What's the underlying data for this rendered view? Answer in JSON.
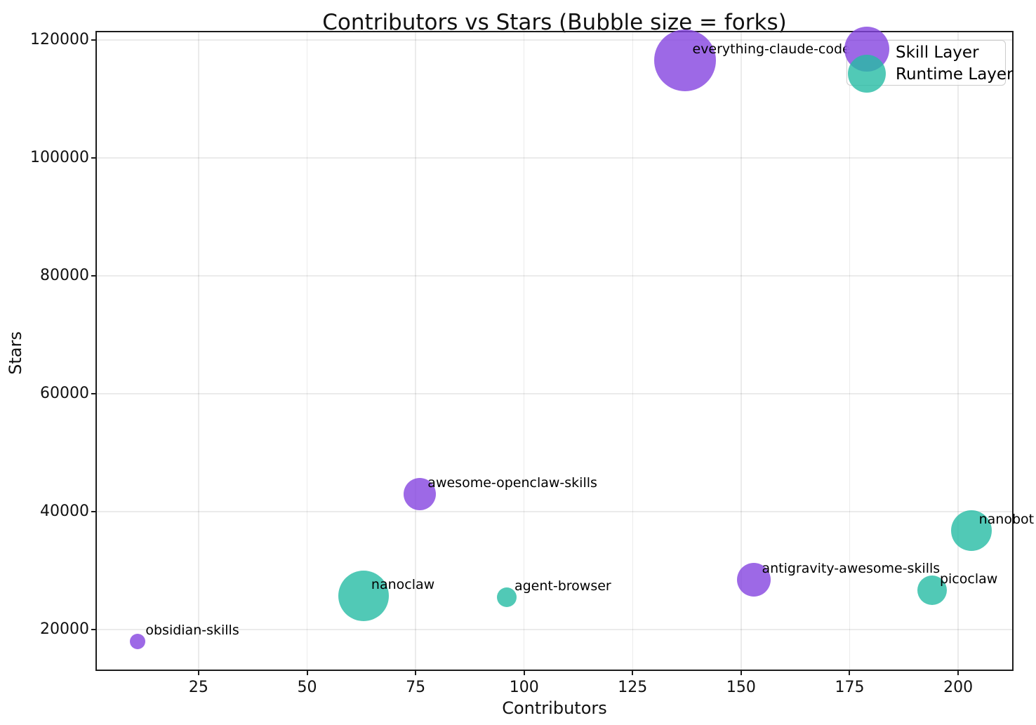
{
  "chart_data": {
    "type": "scatter",
    "subtype": "bubble",
    "title": "Contributors vs Stars (Bubble size = forks)",
    "xlabel": "Contributors",
    "ylabel": "Stars",
    "xlim": [
      1.4,
      212.6
    ],
    "ylim": [
      13075,
      121425
    ],
    "x_ticks": [
      25,
      50,
      75,
      100,
      125,
      150,
      175,
      200
    ],
    "y_ticks": [
      20000,
      40000,
      60000,
      80000,
      100000,
      120000
    ],
    "grid": true,
    "grid_color": "#e9e9e9",
    "legend": {
      "position": "upper right",
      "entries": [
        {
          "label": "Skill Layer",
          "color": "#8444e0"
        },
        {
          "label": "Runtime Layer",
          "color": "#26bba4"
        }
      ]
    },
    "series": [
      {
        "name": "Skill Layer",
        "color": "#8444e0",
        "fill_alpha": 0.8,
        "points": [
          {
            "label": "everything-claude-code",
            "contributors": 137,
            "stars": 116500,
            "bubble_radius_px": 44
          },
          {
            "label": "awesome-openclaw-skills",
            "contributors": 76,
            "stars": 43000,
            "bubble_radius_px": 23
          },
          {
            "label": "antigravity-awesome-skills",
            "contributors": 153,
            "stars": 28400,
            "bubble_radius_px": 24
          },
          {
            "label": "obsidian-skills",
            "contributors": 11,
            "stars": 18000,
            "bubble_radius_px": 11
          }
        ]
      },
      {
        "name": "Runtime Layer",
        "color": "#26bba4",
        "fill_alpha": 0.8,
        "points": [
          {
            "label": "nanoclaw",
            "contributors": 63,
            "stars": 25700,
            "bubble_radius_px": 36
          },
          {
            "label": "agent-browser",
            "contributors": 96,
            "stars": 25400,
            "bubble_radius_px": 14
          },
          {
            "label": "nanobot",
            "contributors": 203,
            "stars": 36800,
            "bubble_radius_px": 29
          },
          {
            "label": "picoclaw",
            "contributors": 194,
            "stars": 26600,
            "bubble_radius_px": 21
          }
        ]
      }
    ]
  }
}
